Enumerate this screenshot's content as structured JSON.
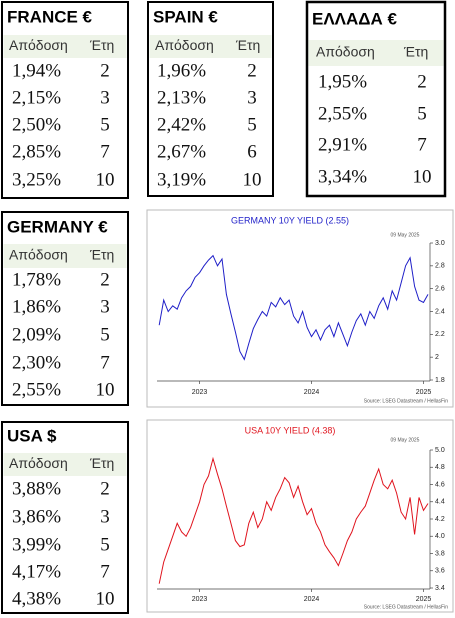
{
  "tables": [
    {
      "title": "FRANCE €",
      "header": [
        "Απόδοση",
        "Έτη"
      ],
      "rows": [
        [
          "1,94%",
          "2"
        ],
        [
          "2,15%",
          "3"
        ],
        [
          "2,50%",
          "5"
        ],
        [
          "2,85%",
          "7"
        ],
        [
          "3,25%",
          "10"
        ]
      ]
    },
    {
      "title": "SPAIN €",
      "header": [
        "Απόδοση",
        "Έτη"
      ],
      "rows": [
        [
          "1,96%",
          "2"
        ],
        [
          "2,13%",
          "3"
        ],
        [
          "2,42%",
          "5"
        ],
        [
          "2,67%",
          "6"
        ],
        [
          "3,19%",
          "10"
        ]
      ]
    },
    {
      "title": "ΕΛΛΑΔΑ €",
      "header": [
        "Απόδοση",
        "Έτη"
      ],
      "rows": [
        [
          "1,95%",
          "2"
        ],
        [
          "2,55%",
          "5"
        ],
        [
          "2,91%",
          "7"
        ],
        [
          "3,34%",
          "10"
        ]
      ]
    },
    {
      "title": "GERMANY €",
      "header": [
        "Απόδοση",
        "Έτη"
      ],
      "rows": [
        [
          "1,78%",
          "2"
        ],
        [
          "1,86%",
          "3"
        ],
        [
          "2,09%",
          "5"
        ],
        [
          "2,30%",
          "7"
        ],
        [
          "2,55%",
          "10"
        ]
      ]
    },
    {
      "title": "USA $",
      "header": [
        "Απόδοση",
        "Έτη"
      ],
      "rows": [
        [
          "3,88%",
          "2"
        ],
        [
          "3,86%",
          "3"
        ],
        [
          "3,99%",
          "5"
        ],
        [
          "4,17%",
          "7"
        ],
        [
          "4,38%",
          "10"
        ]
      ]
    }
  ],
  "chart_data": [
    {
      "type": "line",
      "title": "GERMANY 10Y YIELD  (2.55)",
      "date": "09 May 2025",
      "source": "Source: LSEG Datastream / HellasFin",
      "x": [
        2022.64,
        2022.68,
        2022.72,
        2022.76,
        2022.8,
        2022.84,
        2022.88,
        2022.92,
        2022.96,
        2023.0,
        2023.04,
        2023.08,
        2023.12,
        2023.16,
        2023.2,
        2023.24,
        2023.28,
        2023.32,
        2023.36,
        2023.4,
        2023.44,
        2023.48,
        2023.52,
        2023.56,
        2023.6,
        2023.64,
        2023.68,
        2023.72,
        2023.76,
        2023.8,
        2023.84,
        2023.88,
        2023.92,
        2023.96,
        2024.0,
        2024.04,
        2024.08,
        2024.12,
        2024.16,
        2024.2,
        2024.24,
        2024.28,
        2024.32,
        2024.36,
        2024.4,
        2024.44,
        2024.48,
        2024.52,
        2024.56,
        2024.6,
        2024.64,
        2024.68,
        2024.72,
        2024.76,
        2024.8,
        2024.84,
        2024.88,
        2024.92,
        2024.96,
        2025.0,
        2025.04
      ],
      "series": [
        {
          "name": "GERMANY 10Y YIELD",
          "color": "#1f1fc8",
          "values": [
            2.28,
            2.5,
            2.4,
            2.45,
            2.42,
            2.52,
            2.58,
            2.62,
            2.7,
            2.74,
            2.8,
            2.85,
            2.89,
            2.8,
            2.86,
            2.55,
            2.38,
            2.22,
            2.05,
            1.98,
            2.12,
            2.25,
            2.33,
            2.4,
            2.36,
            2.48,
            2.44,
            2.52,
            2.46,
            2.5,
            2.36,
            2.3,
            2.4,
            2.26,
            2.18,
            2.24,
            2.15,
            2.24,
            2.28,
            2.18,
            2.3,
            2.2,
            2.1,
            2.22,
            2.32,
            2.38,
            2.28,
            2.4,
            2.34,
            2.45,
            2.52,
            2.42,
            2.58,
            2.5,
            2.65,
            2.8,
            2.87,
            2.62,
            2.5,
            2.48,
            2.55
          ]
        }
      ],
      "title_color": "#1f1fc8",
      "xlim": [
        2022.62,
        2025.04
      ],
      "xticks": [
        2023,
        2024,
        2025
      ],
      "ylim": [
        1.8,
        3.0
      ],
      "yticks": [
        1.8,
        2.0,
        2.2,
        2.4,
        2.6,
        2.8,
        {
          "value": 3.0,
          "label": "3.0"
        }
      ]
    },
    {
      "type": "line",
      "title": "USA 10Y YIELD  (4.38)",
      "date": "09 May 2025",
      "source": "Source: LSEG Datastream / HellasFin",
      "x": [
        2022.64,
        2022.68,
        2022.72,
        2022.76,
        2022.8,
        2022.84,
        2022.88,
        2022.92,
        2022.96,
        2023.0,
        2023.04,
        2023.08,
        2023.12,
        2023.16,
        2023.2,
        2023.24,
        2023.28,
        2023.32,
        2023.36,
        2023.4,
        2023.44,
        2023.48,
        2023.52,
        2023.56,
        2023.6,
        2023.64,
        2023.68,
        2023.72,
        2023.76,
        2023.8,
        2023.84,
        2023.88,
        2023.92,
        2023.96,
        2024.0,
        2024.04,
        2024.08,
        2024.12,
        2024.16,
        2024.2,
        2024.24,
        2024.28,
        2024.32,
        2024.36,
        2024.4,
        2024.44,
        2024.48,
        2024.52,
        2024.56,
        2024.6,
        2024.64,
        2024.68,
        2024.72,
        2024.76,
        2024.8,
        2024.84,
        2024.88,
        2024.92,
        2024.96,
        2025.0,
        2025.04
      ],
      "series": [
        {
          "name": "USA 10Y YIELD",
          "color": "#e0141e",
          "values": [
            3.45,
            3.7,
            3.85,
            4.0,
            4.15,
            4.05,
            4.0,
            4.1,
            4.25,
            4.4,
            4.6,
            4.7,
            4.9,
            4.72,
            4.55,
            4.35,
            4.15,
            3.95,
            3.88,
            3.9,
            4.15,
            4.28,
            4.1,
            4.2,
            4.4,
            4.3,
            4.45,
            4.55,
            4.68,
            4.62,
            4.45,
            4.58,
            4.4,
            4.25,
            4.32,
            4.15,
            4.05,
            3.9,
            3.82,
            3.75,
            3.66,
            3.8,
            3.95,
            4.05,
            4.2,
            4.28,
            4.35,
            4.5,
            4.65,
            4.78,
            4.6,
            4.55,
            4.65,
            4.5,
            4.28,
            4.2,
            4.45,
            4.02,
            4.45,
            4.3,
            4.38
          ]
        }
      ],
      "title_color": "#e0141e",
      "xlim": [
        2022.62,
        2025.04
      ],
      "xticks": [
        2023,
        2024,
        2025
      ],
      "ylim": [
        3.4,
        5.0
      ],
      "yticks": [
        3.4,
        3.6,
        3.8,
        {
          "value": 4.0,
          "label": "4.0"
        },
        4.2,
        4.4,
        4.6,
        4.8,
        {
          "value": 5.0,
          "label": "5.0"
        }
      ]
    }
  ]
}
